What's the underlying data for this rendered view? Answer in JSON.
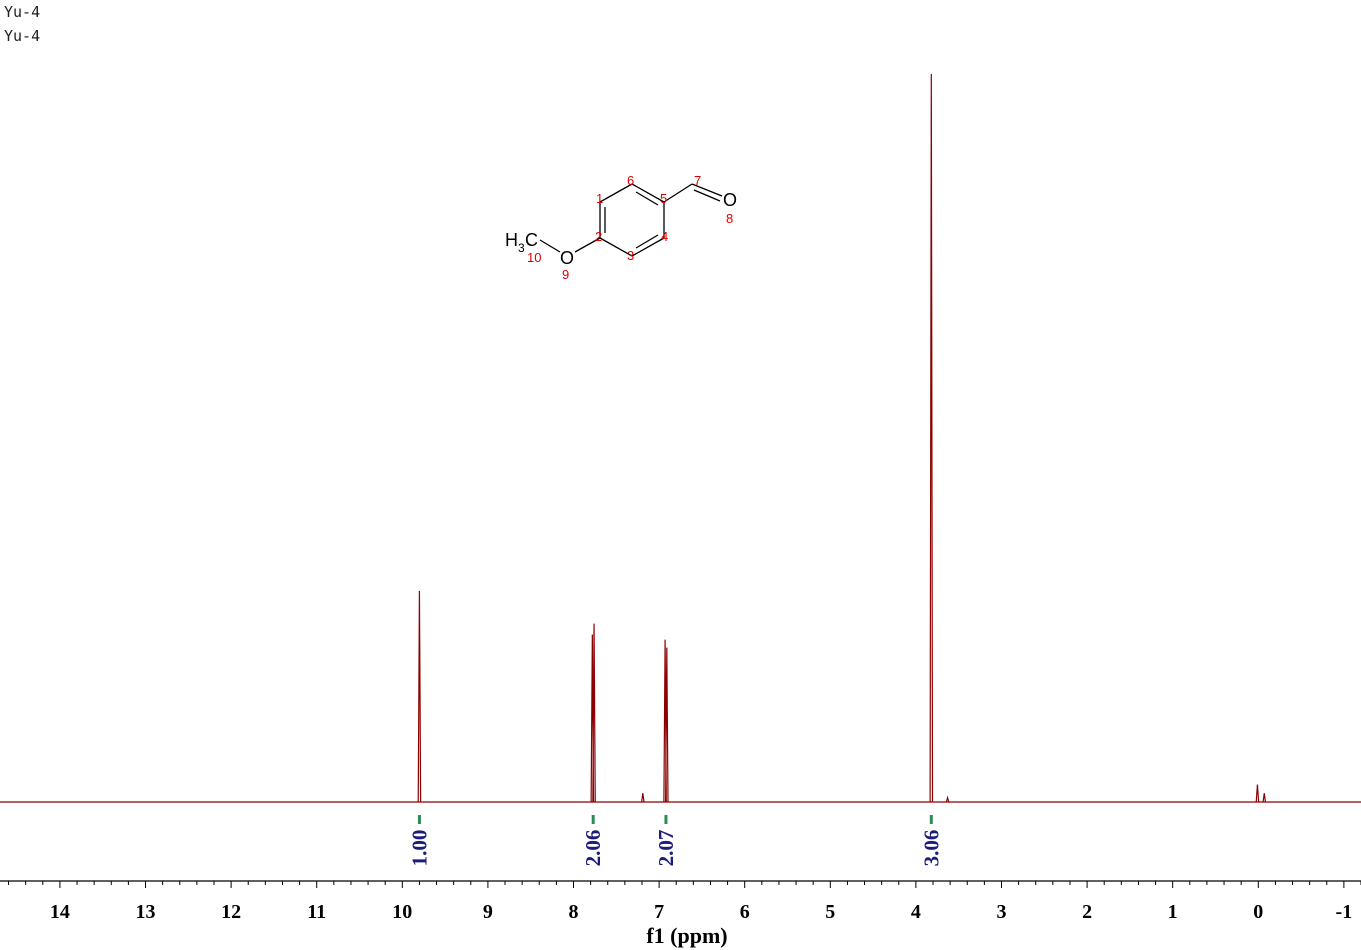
{
  "header": {
    "line1": "Yu-4",
    "line2": "Yu-4"
  },
  "colors": {
    "spectrum": "#8b0000",
    "integral": "#1c1c7a",
    "integral_marker": "#2e8b57",
    "atom_number": "#e00000"
  },
  "molecule": {
    "atoms": {
      "methyl": "H",
      "methyl_sub": "3",
      "methyl_c": "C",
      "ether_o": "O",
      "carbonyl_o": "O"
    },
    "numbers": [
      "1",
      "2",
      "3",
      "4",
      "5",
      "6",
      "7",
      "8",
      "9",
      "10"
    ]
  },
  "chart_data": {
    "type": "line",
    "title": "",
    "xlabel": "f1 (ppm)",
    "ylabel": "",
    "xlim": [
      14.7,
      -1.2
    ],
    "x_reversed": true,
    "xticks": [
      14,
      13,
      12,
      11,
      10,
      9,
      8,
      7,
      6,
      5,
      4,
      3,
      2,
      1,
      0,
      -1
    ],
    "xtick_labels": [
      "14",
      "13",
      "12",
      "11",
      "10",
      "9",
      "8",
      "7",
      "6",
      "5",
      "4",
      "3",
      "2",
      "1",
      "0",
      "-1"
    ],
    "grid": false,
    "series": [
      {
        "peaks": [
          {
            "ppm": 9.8,
            "height": 0.29
          },
          {
            "ppm": 7.78,
            "height": 0.23
          },
          {
            "ppm": 7.76,
            "height": 0.245
          },
          {
            "ppm": 7.19,
            "height": 0.012
          },
          {
            "ppm": 6.93,
            "height": 0.223
          },
          {
            "ppm": 6.91,
            "height": 0.212
          },
          {
            "ppm": 3.82,
            "height": 1.0
          },
          {
            "ppm": 3.63,
            "height": 0.006
          },
          {
            "ppm": 0.01,
            "height": 0.024
          },
          {
            "ppm": -0.07,
            "height": 0.012
          }
        ]
      }
    ],
    "integrals": [
      {
        "ppm": 9.8,
        "label": "1.00"
      },
      {
        "ppm": 7.77,
        "label": "2.06"
      },
      {
        "ppm": 6.92,
        "label": "2.07"
      },
      {
        "ppm": 3.82,
        "label": "3.06"
      }
    ]
  }
}
